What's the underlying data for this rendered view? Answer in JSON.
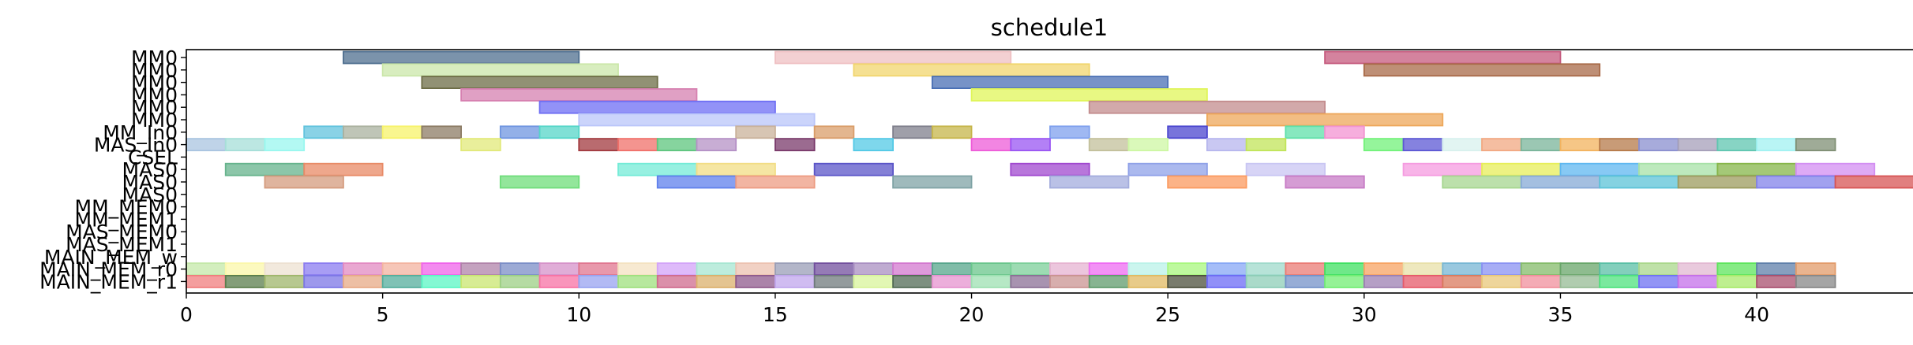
{
  "chart_data": {
    "type": "gantt",
    "title": "schedule1",
    "xlim": [
      0,
      44
    ],
    "x_ticks": [
      0,
      5,
      10,
      15,
      20,
      25,
      30,
      35,
      40
    ],
    "rows": [
      "MM0",
      "MM0",
      "MM0",
      "MM0",
      "MM0",
      "MM0",
      "MM_In0",
      "MAS_In0",
      "CSEL",
      "MAS0",
      "MAS0",
      "MAS0",
      "MM_MEM0",
      "MM_MEM1",
      "MAS_MEM0",
      "MAS_MEM1",
      "MAIN_MEM_w",
      "MAIN_MEM_r0",
      "MAIN_MEM_r1"
    ],
    "tasks": [
      {
        "row": 0,
        "start": 4,
        "end": 10,
        "color": "#4f6f8f"
      },
      {
        "row": 0,
        "start": 15,
        "end": 21,
        "color": "#efc0c3"
      },
      {
        "row": 0,
        "start": 29,
        "end": 35,
        "color": "#c55a7e"
      },
      {
        "row": 1,
        "start": 5,
        "end": 11,
        "color": "#cbe7a9"
      },
      {
        "row": 1,
        "start": 17,
        "end": 23,
        "color": "#f1d56d"
      },
      {
        "row": 1,
        "start": 30,
        "end": 36,
        "color": "#a86a48"
      },
      {
        "row": 2,
        "start": 6,
        "end": 12,
        "color": "#6c6c45"
      },
      {
        "row": 2,
        "start": 19,
        "end": 25,
        "color": "#496fb4"
      },
      {
        "row": 3,
        "start": 7,
        "end": 13,
        "color": "#d680b0"
      },
      {
        "row": 3,
        "start": 20,
        "end": 26,
        "color": "#e0f55a"
      },
      {
        "row": 4,
        "start": 9,
        "end": 15,
        "color": "#6e6ef4"
      },
      {
        "row": 4,
        "start": 23,
        "end": 29,
        "color": "#c38c8d"
      },
      {
        "row": 5,
        "start": 10,
        "end": 16,
        "color": "#bac5fa"
      },
      {
        "row": 5,
        "start": 26,
        "end": 32,
        "color": "#eda75a"
      },
      {
        "row": 6,
        "start": 3,
        "end": 4,
        "color": "#61c3dd"
      },
      {
        "row": 6,
        "start": 4,
        "end": 5,
        "color": "#aab19f"
      },
      {
        "row": 6,
        "start": 5,
        "end": 6,
        "color": "#f7f36a"
      },
      {
        "row": 6,
        "start": 6,
        "end": 7,
        "color": "#8c7b64"
      },
      {
        "row": 6,
        "start": 8,
        "end": 9,
        "color": "#6f95e0"
      },
      {
        "row": 6,
        "start": 9,
        "end": 10,
        "color": "#55d6c8"
      },
      {
        "row": 6,
        "start": 14,
        "end": 15,
        "color": "#c9b19a"
      },
      {
        "row": 6,
        "start": 16,
        "end": 17,
        "color": "#d99d69"
      },
      {
        "row": 6,
        "start": 18,
        "end": 19,
        "color": "#7f7f8c"
      },
      {
        "row": 6,
        "start": 19,
        "end": 20,
        "color": "#c6b54a"
      },
      {
        "row": 6,
        "start": 22,
        "end": 23,
        "color": "#7fa0ee"
      },
      {
        "row": 6,
        "start": 25,
        "end": 26,
        "color": "#4b46cf"
      },
      {
        "row": 6,
        "start": 28,
        "end": 29,
        "color": "#5fe0a9"
      },
      {
        "row": 6,
        "start": 29,
        "end": 30,
        "color": "#f393d1"
      },
      {
        "row": 7,
        "start": 0,
        "end": 1,
        "color": "#a9c4e0"
      },
      {
        "row": 7,
        "start": 1,
        "end": 2,
        "color": "#a6dfd8"
      },
      {
        "row": 7,
        "start": 2,
        "end": 3,
        "color": "#99f7ef"
      },
      {
        "row": 7,
        "start": 7,
        "end": 8,
        "color": "#e2e97a"
      },
      {
        "row": 7,
        "start": 10,
        "end": 11,
        "color": "#a23a3f"
      },
      {
        "row": 7,
        "start": 11,
        "end": 12,
        "color": "#f0706a"
      },
      {
        "row": 7,
        "start": 12,
        "end": 13,
        "color": "#5ec57e"
      },
      {
        "row": 7,
        "start": 13,
        "end": 14,
        "color": "#b591c6"
      },
      {
        "row": 7,
        "start": 15,
        "end": 16,
        "color": "#7a3a6b"
      },
      {
        "row": 7,
        "start": 17,
        "end": 18,
        "color": "#53c9e6"
      },
      {
        "row": 7,
        "start": 20,
        "end": 21,
        "color": "#ee5cd8"
      },
      {
        "row": 7,
        "start": 21,
        "end": 22,
        "color": "#9a55f3"
      },
      {
        "row": 7,
        "start": 23,
        "end": 24,
        "color": "#c3c09b"
      },
      {
        "row": 7,
        "start": 24,
        "end": 25,
        "color": "#cdf7a3"
      },
      {
        "row": 7,
        "start": 26,
        "end": 27,
        "color": "#b7b6ee"
      },
      {
        "row": 7,
        "start": 27,
        "end": 28,
        "color": "#c1e45a"
      },
      {
        "row": 7,
        "start": 30,
        "end": 31,
        "color": "#72f27a"
      },
      {
        "row": 7,
        "start": 31,
        "end": 32,
        "color": "#5c58d4"
      },
      {
        "row": 7,
        "start": 32,
        "end": 33,
        "color": "#d8f1ee"
      },
      {
        "row": 7,
        "start": 33,
        "end": 34,
        "color": "#f2a882"
      },
      {
        "row": 7,
        "start": 34,
        "end": 35,
        "color": "#79b49a"
      },
      {
        "row": 7,
        "start": 35,
        "end": 36,
        "color": "#f3b35e"
      },
      {
        "row": 7,
        "start": 36,
        "end": 37,
        "color": "#b67a4a"
      },
      {
        "row": 7,
        "start": 37,
        "end": 38,
        "color": "#8a8fcf"
      },
      {
        "row": 7,
        "start": 38,
        "end": 39,
        "color": "#a59fb9"
      },
      {
        "row": 7,
        "start": 39,
        "end": 40,
        "color": "#5fc6b0"
      },
      {
        "row": 7,
        "start": 40,
        "end": 41,
        "color": "#a1f2f2"
      },
      {
        "row": 7,
        "start": 41,
        "end": 42,
        "color": "#7f8f74"
      },
      {
        "row": 9,
        "start": 1,
        "end": 3,
        "color": "#66b38c"
      },
      {
        "row": 9,
        "start": 3,
        "end": 5,
        "color": "#e88a66"
      },
      {
        "row": 9,
        "start": 11,
        "end": 13,
        "color": "#74ebd7"
      },
      {
        "row": 9,
        "start": 13,
        "end": 15,
        "color": "#f2dd84"
      },
      {
        "row": 9,
        "start": 16,
        "end": 18,
        "color": "#5b55c8"
      },
      {
        "row": 9,
        "start": 21,
        "end": 23,
        "color": "#a048cf"
      },
      {
        "row": 9,
        "start": 24,
        "end": 26,
        "color": "#8fa1e8"
      },
      {
        "row": 9,
        "start": 27,
        "end": 29,
        "color": "#c9c6f3"
      },
      {
        "row": 9,
        "start": 31,
        "end": 33,
        "color": "#f59be0"
      },
      {
        "row": 9,
        "start": 33,
        "end": 35,
        "color": "#e7ee59"
      },
      {
        "row": 9,
        "start": 35,
        "end": 37,
        "color": "#5fb7f0"
      },
      {
        "row": 9,
        "start": 37,
        "end": 39,
        "color": "#a7e1a7"
      },
      {
        "row": 9,
        "start": 39,
        "end": 41,
        "color": "#86b549"
      },
      {
        "row": 9,
        "start": 41,
        "end": 43,
        "color": "#d38ef2"
      },
      {
        "row": 10,
        "start": 2,
        "end": 4,
        "color": "#d49b7e"
      },
      {
        "row": 10,
        "start": 8,
        "end": 10,
        "color": "#6fdd7a"
      },
      {
        "row": 10,
        "start": 12,
        "end": 14,
        "color": "#5f80ec"
      },
      {
        "row": 10,
        "start": 14,
        "end": 16,
        "color": "#ed9c83"
      },
      {
        "row": 10,
        "start": 18,
        "end": 20,
        "color": "#7fa3a5"
      },
      {
        "row": 10,
        "start": 22,
        "end": 24,
        "color": "#a3acdd"
      },
      {
        "row": 10,
        "start": 25,
        "end": 27,
        "color": "#fb9a5f"
      },
      {
        "row": 10,
        "start": 28,
        "end": 30,
        "color": "#c77bc5"
      },
      {
        "row": 10,
        "start": 32,
        "end": 34,
        "color": "#a6d68f"
      },
      {
        "row": 10,
        "start": 34,
        "end": 36,
        "color": "#86a9d6"
      },
      {
        "row": 10,
        "start": 36,
        "end": 38,
        "color": "#5cc3d7"
      },
      {
        "row": 10,
        "start": 38,
        "end": 40,
        "color": "#9c9b5e"
      },
      {
        "row": 10,
        "start": 40,
        "end": 42,
        "color": "#8181ea"
      },
      {
        "row": 10,
        "start": 42,
        "end": 44,
        "color": "#d75454"
      },
      {
        "row": 17,
        "start": 0,
        "end": 1,
        "color": "#c4e8a8"
      },
      {
        "row": 17,
        "start": 1,
        "end": 2,
        "color": "#fbf7aa"
      },
      {
        "row": 17,
        "start": 2,
        "end": 3,
        "color": "#ede1d2"
      },
      {
        "row": 17,
        "start": 3,
        "end": 4,
        "color": "#8b7cf0"
      },
      {
        "row": 17,
        "start": 4,
        "end": 5,
        "color": "#e28ac2"
      },
      {
        "row": 17,
        "start": 5,
        "end": 6,
        "color": "#f3b3a0"
      },
      {
        "row": 17,
        "start": 6,
        "end": 7,
        "color": "#ef64ea"
      },
      {
        "row": 17,
        "start": 7,
        "end": 8,
        "color": "#b083a9"
      },
      {
        "row": 17,
        "start": 8,
        "end": 9,
        "color": "#7b8ec7"
      },
      {
        "row": 17,
        "start": 9,
        "end": 10,
        "color": "#d692c9"
      },
      {
        "row": 17,
        "start": 10,
        "end": 11,
        "color": "#e0768f"
      },
      {
        "row": 17,
        "start": 11,
        "end": 12,
        "color": "#f4e2c1"
      },
      {
        "row": 17,
        "start": 12,
        "end": 13,
        "color": "#d3a3f8"
      },
      {
        "row": 17,
        "start": 13,
        "end": 14,
        "color": "#a7e6d2"
      },
      {
        "row": 17,
        "start": 14,
        "end": 15,
        "color": "#ecc2b0"
      },
      {
        "row": 17,
        "start": 15,
        "end": 16,
        "color": "#9a9eb7"
      },
      {
        "row": 17,
        "start": 16,
        "end": 17,
        "color": "#724f9d"
      },
      {
        "row": 17,
        "start": 17,
        "end": 18,
        "color": "#a98fc2"
      },
      {
        "row": 17,
        "start": 18,
        "end": 19,
        "color": "#d378cf"
      },
      {
        "row": 17,
        "start": 19,
        "end": 20,
        "color": "#56a58b"
      },
      {
        "row": 17,
        "start": 20,
        "end": 21,
        "color": "#69c58b"
      },
      {
        "row": 17,
        "start": 21,
        "end": 22,
        "color": "#7ccf99"
      },
      {
        "row": 17,
        "start": 22,
        "end": 23,
        "color": "#e6b3d1"
      },
      {
        "row": 17,
        "start": 23,
        "end": 24,
        "color": "#ee6cf2"
      },
      {
        "row": 17,
        "start": 24,
        "end": 25,
        "color": "#baf2e8"
      },
      {
        "row": 17,
        "start": 25,
        "end": 26,
        "color": "#a8f77e"
      },
      {
        "row": 17,
        "start": 26,
        "end": 27,
        "color": "#87a7f5"
      },
      {
        "row": 17,
        "start": 27,
        "end": 28,
        "color": "#9fdacb"
      },
      {
        "row": 17,
        "start": 28,
        "end": 29,
        "color": "#ea7b74"
      },
      {
        "row": 17,
        "start": 29,
        "end": 30,
        "color": "#3fe062"
      },
      {
        "row": 17,
        "start": 30,
        "end": 31,
        "color": "#f7a363"
      },
      {
        "row": 17,
        "start": 31,
        "end": 32,
        "color": "#e8e0a8"
      },
      {
        "row": 17,
        "start": 32,
        "end": 33,
        "color": "#77b6d4"
      },
      {
        "row": 17,
        "start": 33,
        "end": 34,
        "color": "#8a92f2"
      },
      {
        "row": 17,
        "start": 34,
        "end": 35,
        "color": "#84bb6a"
      },
      {
        "row": 17,
        "start": 35,
        "end": 36,
        "color": "#68a66a"
      },
      {
        "row": 17,
        "start": 36,
        "end": 37,
        "color": "#59bfa5"
      },
      {
        "row": 17,
        "start": 37,
        "end": 38,
        "color": "#a9d78b"
      },
      {
        "row": 17,
        "start": 38,
        "end": 39,
        "color": "#e2b8d2"
      },
      {
        "row": 17,
        "start": 39,
        "end": 40,
        "color": "#5de45c"
      },
      {
        "row": 17,
        "start": 40,
        "end": 41,
        "color": "#5f7fa9"
      },
      {
        "row": 17,
        "start": 41,
        "end": 42,
        "color": "#e29b6a"
      },
      {
        "row": 18,
        "start": 0,
        "end": 1,
        "color": "#f07d7d"
      },
      {
        "row": 18,
        "start": 1,
        "end": 2,
        "color": "#5b7e4c"
      },
      {
        "row": 18,
        "start": 2,
        "end": 3,
        "color": "#9fb66b"
      },
      {
        "row": 18,
        "start": 3,
        "end": 4,
        "color": "#7c76e6"
      },
      {
        "row": 18,
        "start": 4,
        "end": 5,
        "color": "#e7a986"
      },
      {
        "row": 18,
        "start": 5,
        "end": 6,
        "color": "#54ae9c"
      },
      {
        "row": 18,
        "start": 6,
        "end": 7,
        "color": "#5bf6c4"
      },
      {
        "row": 18,
        "start": 7,
        "end": 8,
        "color": "#c9e670"
      },
      {
        "row": 18,
        "start": 8,
        "end": 9,
        "color": "#9ccf84"
      },
      {
        "row": 18,
        "start": 9,
        "end": 10,
        "color": "#f772a4"
      },
      {
        "row": 18,
        "start": 10,
        "end": 11,
        "color": "#98a3f0"
      },
      {
        "row": 18,
        "start": 11,
        "end": 12,
        "color": "#9fe07e"
      },
      {
        "row": 18,
        "start": 12,
        "end": 13,
        "color": "#cf6b8d"
      },
      {
        "row": 18,
        "start": 13,
        "end": 14,
        "color": "#dbb06c"
      },
      {
        "row": 18,
        "start": 14,
        "end": 15,
        "color": "#8f5a8c"
      },
      {
        "row": 18,
        "start": 15,
        "end": 16,
        "color": "#c0a6ec"
      },
      {
        "row": 18,
        "start": 16,
        "end": 17,
        "color": "#6f7a7c"
      },
      {
        "row": 18,
        "start": 17,
        "end": 18,
        "color": "#d8f49b"
      },
      {
        "row": 18,
        "start": 18,
        "end": 19,
        "color": "#526b55"
      },
      {
        "row": 18,
        "start": 19,
        "end": 20,
        "color": "#e593cf"
      },
      {
        "row": 18,
        "start": 20,
        "end": 21,
        "color": "#9de0b1"
      },
      {
        "row": 18,
        "start": 21,
        "end": 22,
        "color": "#8b6f95"
      },
      {
        "row": 18,
        "start": 22,
        "end": 23,
        "color": "#c99391"
      },
      {
        "row": 18,
        "start": 23,
        "end": 24,
        "color": "#5f9b6c"
      },
      {
        "row": 18,
        "start": 24,
        "end": 25,
        "color": "#e0ba62"
      },
      {
        "row": 18,
        "start": 25,
        "end": 26,
        "color": "#4c503c"
      },
      {
        "row": 18,
        "start": 26,
        "end": 27,
        "color": "#6c6bf5"
      },
      {
        "row": 18,
        "start": 27,
        "end": 28,
        "color": "#8dcdb7"
      },
      {
        "row": 18,
        "start": 28,
        "end": 29,
        "color": "#7492c8"
      },
      {
        "row": 18,
        "start": 29,
        "end": 30,
        "color": "#72ed73"
      },
      {
        "row": 18,
        "start": 30,
        "end": 31,
        "color": "#9c7fb1"
      },
      {
        "row": 18,
        "start": 31,
        "end": 32,
        "color": "#e65a6a"
      },
      {
        "row": 18,
        "start": 32,
        "end": 33,
        "color": "#d97a5e"
      },
      {
        "row": 18,
        "start": 33,
        "end": 34,
        "color": "#e8c77a"
      },
      {
        "row": 18,
        "start": 34,
        "end": 35,
        "color": "#f08f9c"
      },
      {
        "row": 18,
        "start": 35,
        "end": 36,
        "color": "#95bb94"
      },
      {
        "row": 18,
        "start": 36,
        "end": 37,
        "color": "#4de27d"
      },
      {
        "row": 18,
        "start": 37,
        "end": 38,
        "color": "#6e72f2"
      },
      {
        "row": 18,
        "start": 38,
        "end": 39,
        "color": "#c46fe9"
      },
      {
        "row": 18,
        "start": 39,
        "end": 40,
        "color": "#a8ea6b"
      },
      {
        "row": 18,
        "start": 40,
        "end": 41,
        "color": "#a84f6e"
      },
      {
        "row": 18,
        "start": 41,
        "end": 42,
        "color": "#878787"
      }
    ]
  }
}
